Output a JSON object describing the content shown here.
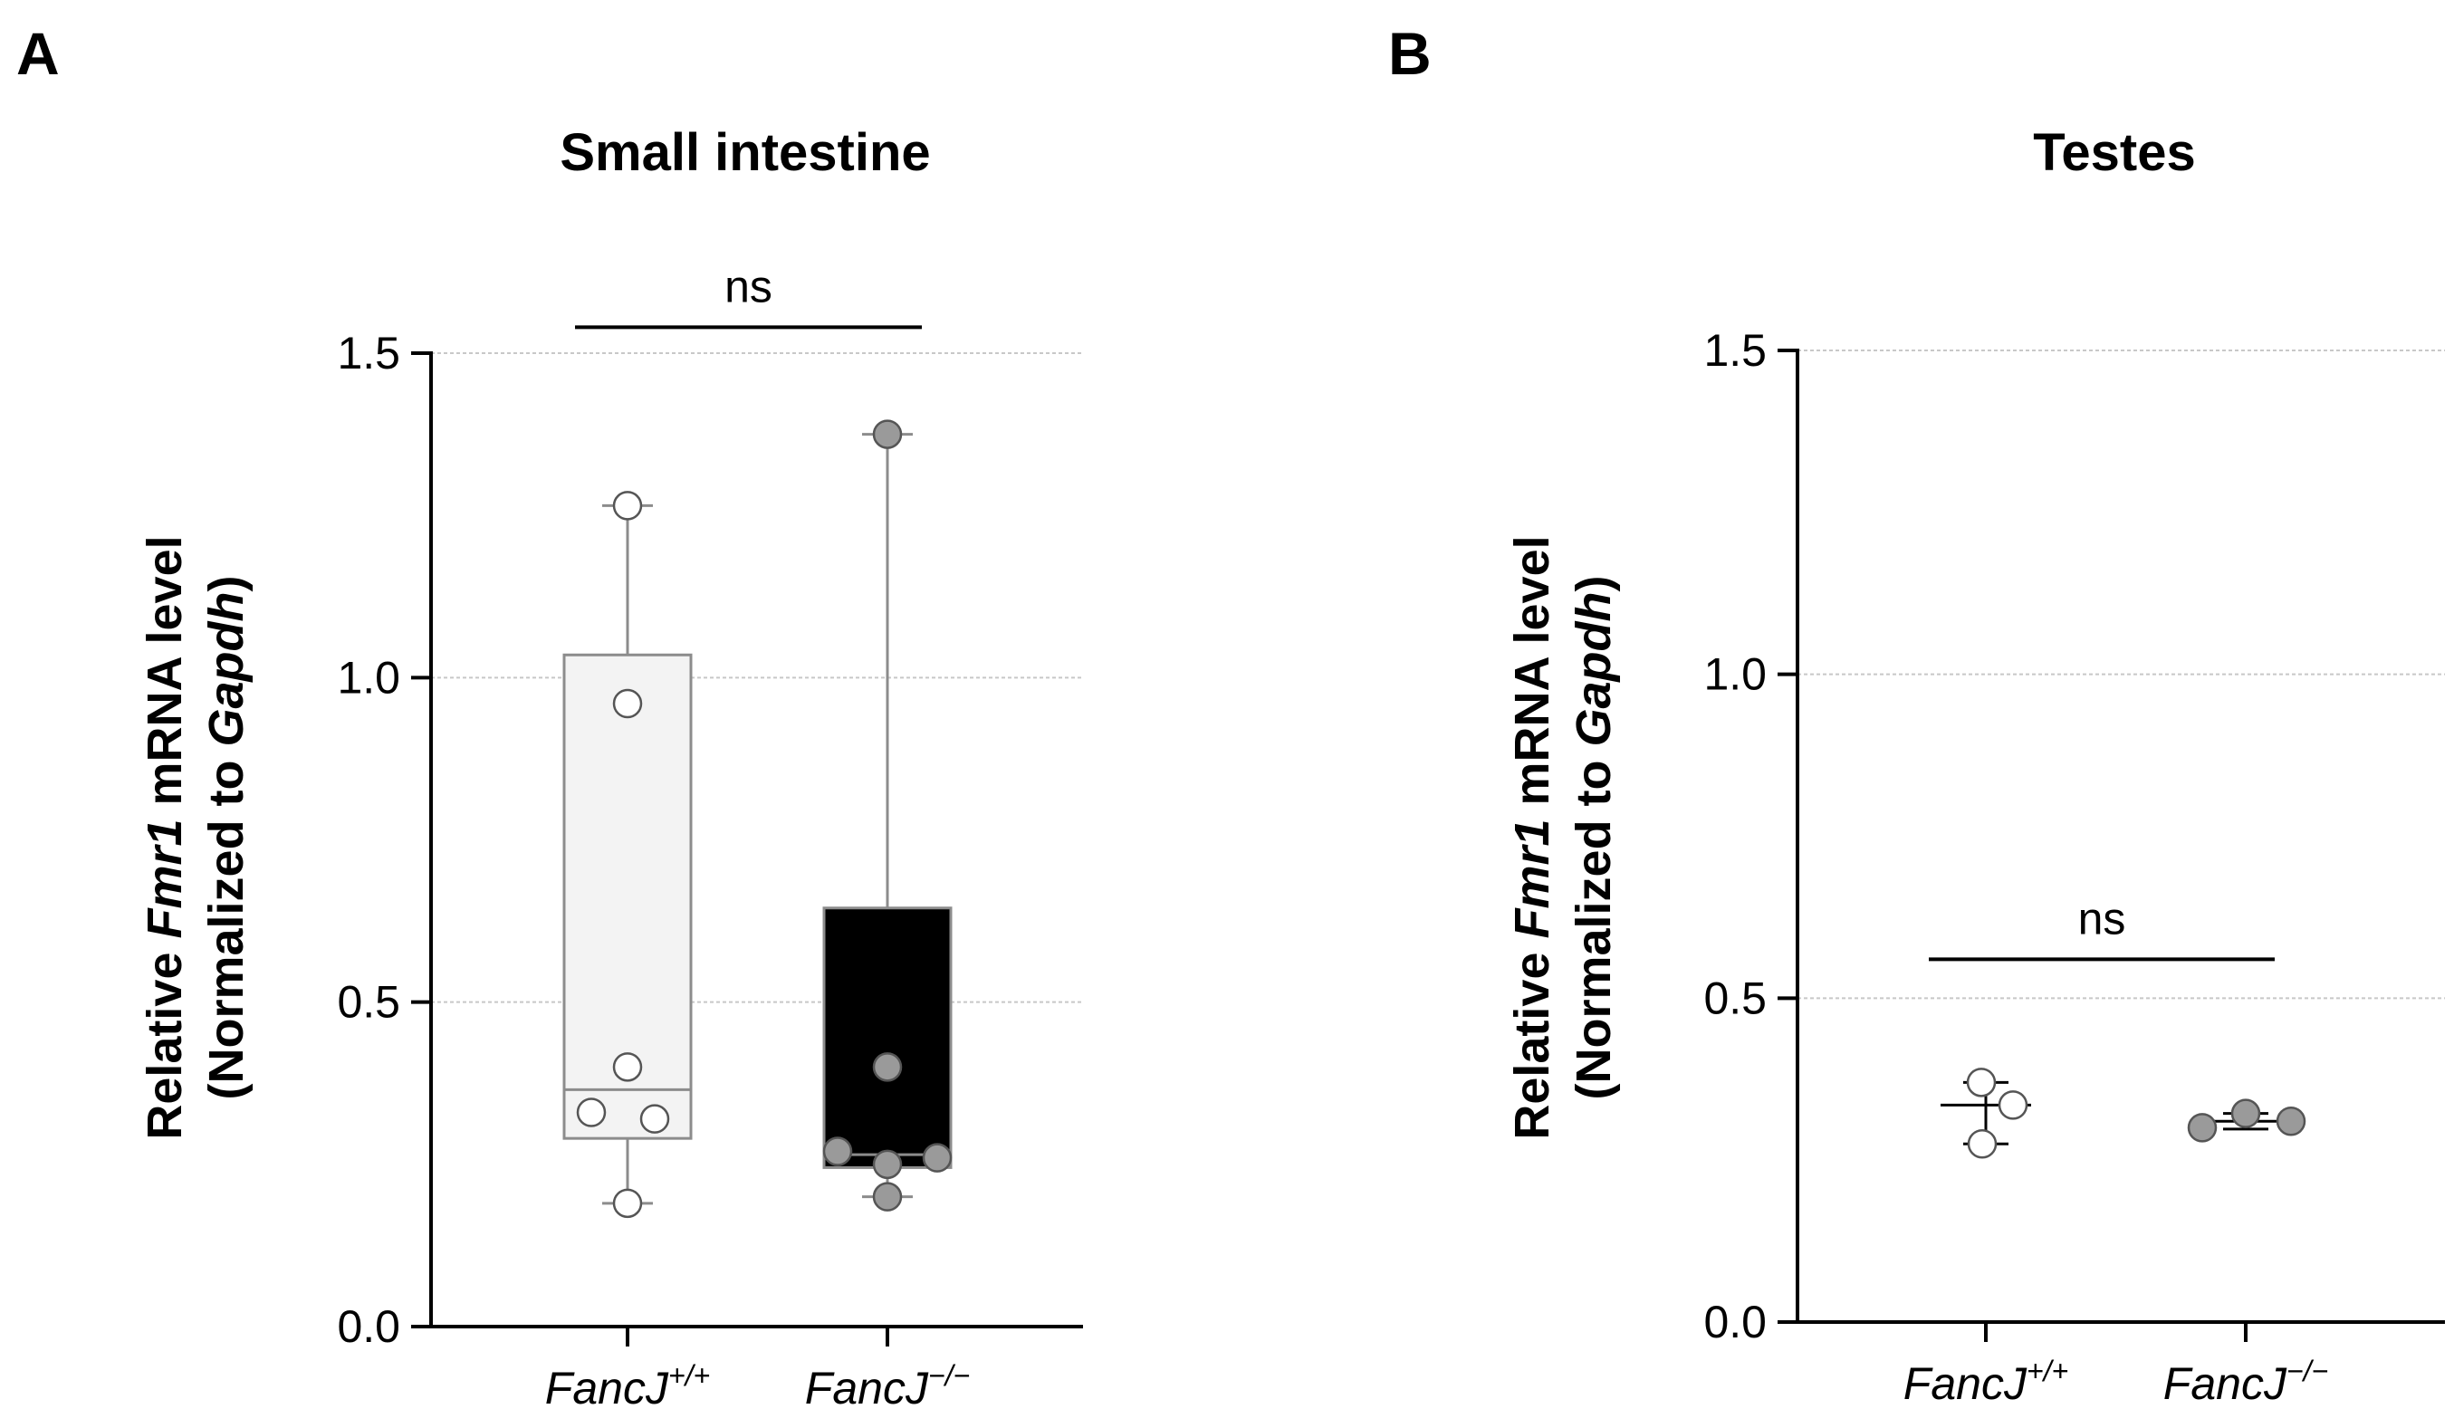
{
  "colors": {
    "axis": "#000000",
    "grid": "#c8c8c8",
    "whisker": "#8c8c8c",
    "wt_box_fill": "#f3f3f3",
    "wt_box_stroke": "#8c8c8c",
    "ko_box_fill": "#000000",
    "wt_point_fill": "#ffffff",
    "ko_point_fill": "#9a9a9a",
    "point_stroke": "#555555",
    "errorbar": "#000000"
  },
  "chart_data": [
    {
      "panel_label": "A",
      "type": "box",
      "title": "Small intestine",
      "ylabel": {
        "line1_prefix": "Relative ",
        "line1_gene": "Fmr1",
        "line1_suffix": " mRNA level",
        "line2_prefix": "(Normalized to ",
        "line2_gene": "Gapdh",
        "line2_suffix": ")"
      },
      "ylim": [
        0,
        1.5
      ],
      "yticks": [
        0.0,
        0.5,
        1.0,
        1.5
      ],
      "ytick_labels": [
        "0.0",
        "0.5",
        "1.0",
        "1.5"
      ],
      "gridlines": [
        0.5,
        1.0,
        1.5
      ],
      "categories": [
        {
          "name": "FancJ",
          "sup": "+/+"
        },
        {
          "name": "FancJ",
          "sup": "−/−"
        }
      ],
      "series": [
        {
          "name": "FancJ+/+",
          "min": 0.19,
          "q1": 0.29,
          "median": 0.365,
          "q3": 1.035,
          "max": 1.265,
          "points": [
            1.265,
            0.96,
            0.4,
            0.33,
            0.32,
            0.19
          ]
        },
        {
          "name": "FancJ−/−",
          "min": 0.2,
          "q1": 0.245,
          "median": 0.265,
          "q3": 0.645,
          "max": 1.375,
          "points": [
            1.375,
            0.4,
            0.27,
            0.26,
            0.25,
            0.2
          ]
        }
      ],
      "significance": {
        "label": "ns",
        "y": 1.54
      }
    },
    {
      "panel_label": "B",
      "type": "scatter",
      "title": "Testes",
      "ylabel": {
        "line1_prefix": "Relative ",
        "line1_gene": "Fmr1",
        "line1_suffix": " mRNA level",
        "line2_prefix": "(Normalized to ",
        "line2_gene": "Gapdh",
        "line2_suffix": ")"
      },
      "ylim": [
        0,
        1.5
      ],
      "yticks": [
        0.0,
        0.5,
        1.0,
        1.5
      ],
      "ytick_labels": [
        "0.0",
        "0.5",
        "1.0",
        "1.5"
      ],
      "gridlines": [
        0.5,
        1.0,
        1.5
      ],
      "categories": [
        {
          "name": "FancJ",
          "sup": "+/+"
        },
        {
          "name": "FancJ",
          "sup": "−/−"
        }
      ],
      "series": [
        {
          "name": "FancJ+/+",
          "mean": 0.335,
          "sd_low": 0.275,
          "sd_high": 0.37,
          "points": [
            0.37,
            0.335,
            0.275
          ]
        },
        {
          "name": "FancJ−/−",
          "mean": 0.31,
          "sd_low": 0.298,
          "sd_high": 0.322,
          "points": [
            0.3,
            0.322,
            0.31
          ]
        }
      ],
      "significance": {
        "label": "ns",
        "y": 0.56
      }
    }
  ]
}
